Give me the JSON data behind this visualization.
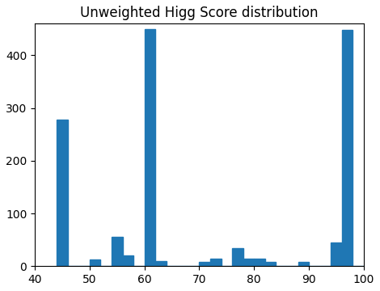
{
  "title": "Unweighted Higg Score distribution",
  "bar_color": "#1f77b4",
  "xlim": [
    40,
    100
  ],
  "ylim": [
    0,
    460
  ],
  "bin_left_edges": [
    44,
    46,
    48,
    50,
    52,
    54,
    56,
    58,
    60,
    62,
    64,
    66,
    68,
    70,
    71,
    72,
    74,
    76,
    78,
    80,
    81,
    82,
    84,
    86,
    88,
    90,
    92,
    94,
    96,
    98
  ],
  "bin_heights": [
    278,
    0,
    0,
    13,
    0,
    56,
    20,
    0,
    449,
    10,
    0,
    0,
    0,
    8,
    0,
    14,
    0,
    35,
    15,
    15,
    0,
    8,
    0,
    0,
    8,
    0,
    0,
    45,
    448,
    0
  ],
  "bin_width": 2,
  "xticks": [
    40,
    50,
    60,
    70,
    80,
    90,
    100
  ],
  "yticks": [
    0,
    100,
    200,
    300,
    400
  ],
  "figsize": [
    4.7,
    3.6
  ],
  "dpi": 100
}
